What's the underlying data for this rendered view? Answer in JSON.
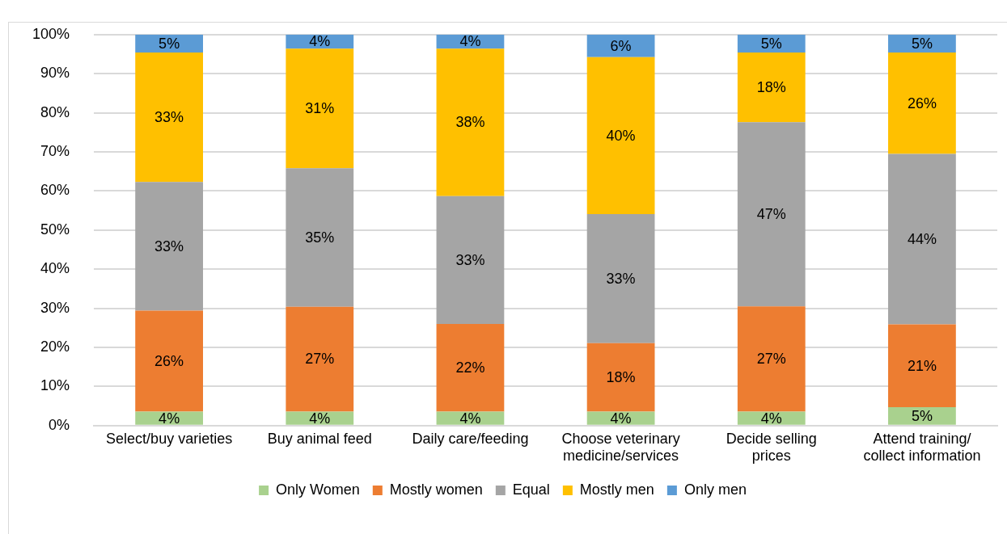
{
  "chart_data": {
    "type": "bar",
    "stacked": true,
    "categories": [
      "Select/buy varieties",
      "Buy animal feed",
      "Daily care/feeding",
      "Choose veterinary\nmedicine/services",
      "Decide selling\nprices",
      "Attend training/\ncollect information"
    ],
    "series": [
      {
        "name": "Only Women",
        "color": "#a9d18e",
        "values": [
          3.6,
          3.6,
          3.6,
          3.6,
          3.6,
          4.7
        ],
        "value_labels": [
          "4%",
          "4%",
          "4%",
          "4%",
          "4%",
          "5%"
        ]
      },
      {
        "name": "Mostly women",
        "color": "#ed7d31",
        "values": [
          25.8,
          26.8,
          22.4,
          17.5,
          26.9,
          21.2
        ],
        "value_labels": [
          "26%",
          "27%",
          "22%",
          "18%",
          "27%",
          "21%"
        ]
      },
      {
        "name": "Equal",
        "color": "#a5a5a5",
        "values": [
          32.9,
          35.4,
          32.7,
          33.0,
          47.1,
          43.6
        ],
        "value_labels": [
          "33%",
          "35%",
          "33%",
          "33%",
          "47%",
          "44%"
        ]
      },
      {
        "name": "Mostly men",
        "color": "#ffc000",
        "values": [
          33.1,
          30.6,
          37.7,
          40.1,
          17.8,
          25.9
        ],
        "value_labels": [
          "33%",
          "31%",
          "38%",
          "40%",
          "18%",
          "26%"
        ]
      },
      {
        "name": "Only men",
        "color": "#5b9bd5",
        "values": [
          4.6,
          3.6,
          3.6,
          5.8,
          4.6,
          4.6
        ],
        "value_labels": [
          "5%",
          "4%",
          "4%",
          "6%",
          "5%",
          "5%"
        ]
      }
    ],
    "ylim": [
      0,
      100
    ],
    "yticks": [
      {
        "value": 0,
        "label": "0%"
      },
      {
        "value": 10,
        "label": "10%"
      },
      {
        "value": 20,
        "label": "20%"
      },
      {
        "value": 30,
        "label": "30%"
      },
      {
        "value": 40,
        "label": "40%"
      },
      {
        "value": 50,
        "label": "50%"
      },
      {
        "value": 60,
        "label": "60%"
      },
      {
        "value": 70,
        "label": "70%"
      },
      {
        "value": 80,
        "label": "80%"
      },
      {
        "value": 90,
        "label": "90%"
      },
      {
        "value": 100,
        "label": "100%"
      }
    ],
    "grid": "y",
    "legend": "bottom"
  }
}
